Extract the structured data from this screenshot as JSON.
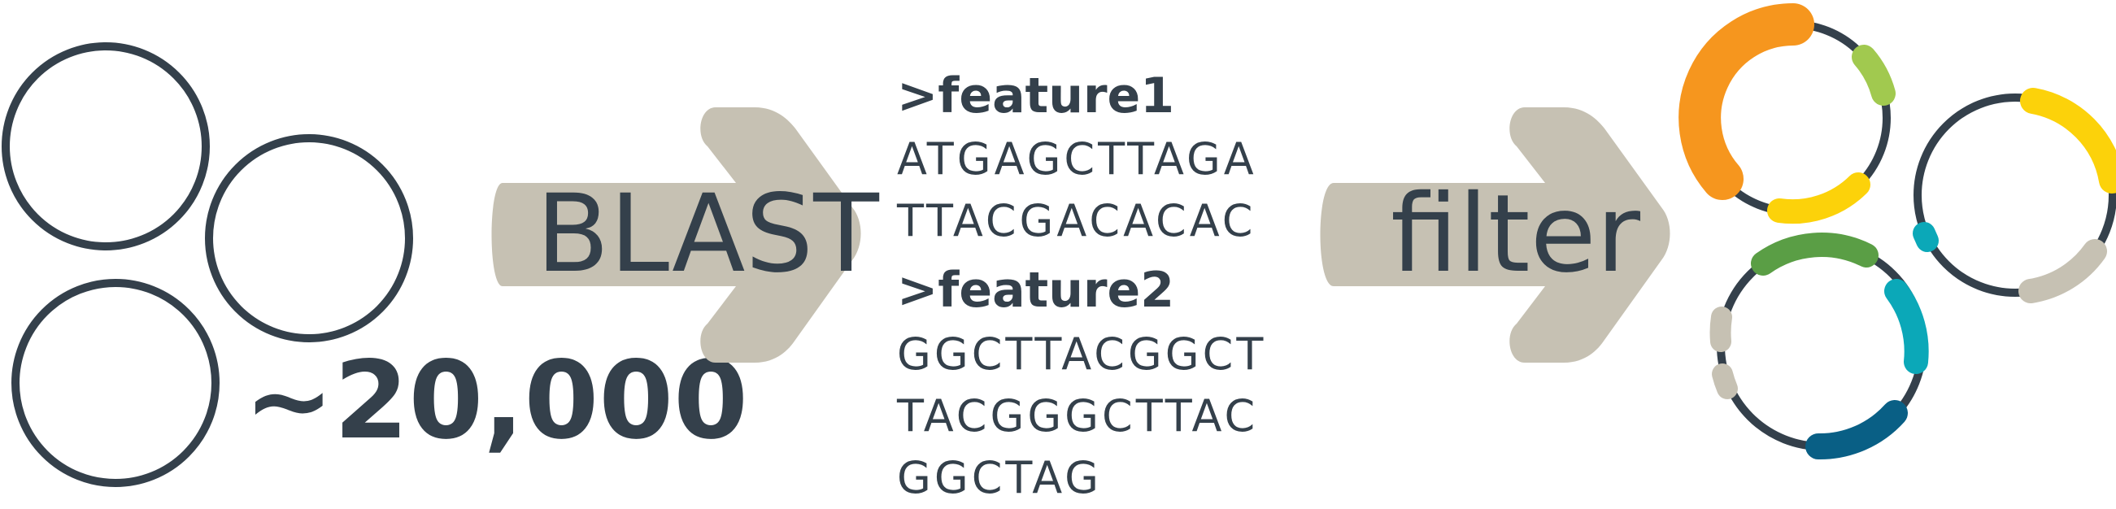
{
  "diagram": {
    "count_label": "~20,000",
    "blast_label": "BLAST",
    "filter_label": "filter",
    "fasta_lines": [
      {
        "kind": "header",
        "text": ">feature1"
      },
      {
        "kind": "sequence",
        "text": "ATGAGCTTAGA"
      },
      {
        "kind": "sequence",
        "text": "TTACGACACAC"
      },
      {
        "kind": "header",
        "text": ">feature2"
      },
      {
        "kind": "sequence",
        "text": "GGCTTACGGCT"
      },
      {
        "kind": "sequence",
        "text": "TACGGGCTTAC"
      },
      {
        "kind": "sequence",
        "text": "GGCTAG"
      }
    ]
  },
  "colors": {
    "outline": "#34404b",
    "arrow": "#c6c1b3",
    "orange": "#f6961e",
    "lime": "#a1c94f",
    "yellow": "#fcd20a",
    "teal": "#0ba8b8",
    "gray": "#c6c1b3",
    "green": "#5a9e45",
    "blue": "#095f85"
  }
}
